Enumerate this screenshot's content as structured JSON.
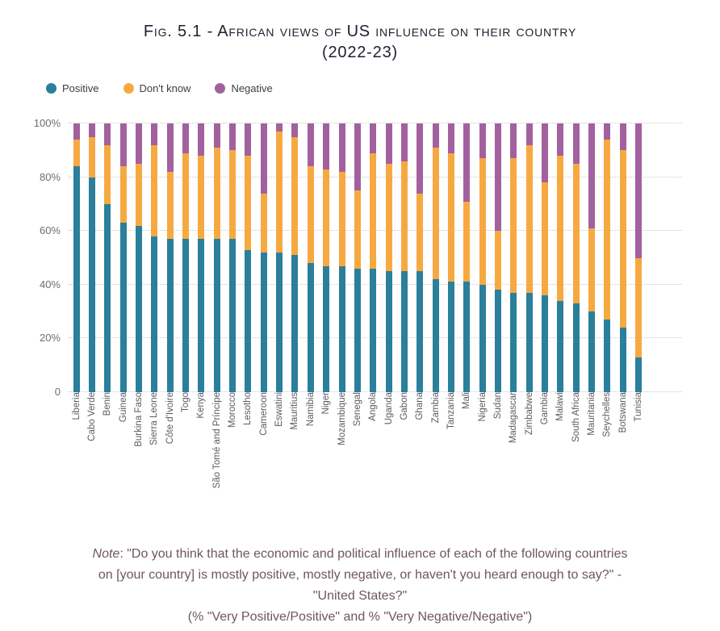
{
  "figure": {
    "title_line1": "Fig. 5.1 - African views of US influence on their country",
    "title_line2": "(2022-23)"
  },
  "legend": {
    "items": [
      {
        "label": "Positive",
        "color": "#2A7F9B"
      },
      {
        "label": "Don't know",
        "color": "#F7A941"
      },
      {
        "label": "Negative",
        "color": "#A2619E"
      }
    ]
  },
  "note": {
    "label": "Note",
    "body": ": \"Do you think that the economic and political influence of each of the following countries on [your country] is mostly positive, mostly negative, or haven't you heard enough to say?\" - \"United States?\"",
    "line2": "(% \"Very Positive/Positive\" and % \"Very Negative/Negative\")"
  },
  "chart_data": {
    "type": "bar",
    "stacked": true,
    "orientation": "vertical",
    "title": "Fig. 5.1 - African views of US influence on their country (2022-23)",
    "xlabel": "",
    "ylabel": "",
    "ylim": [
      0,
      100
    ],
    "grid": true,
    "legend_position": "top-left",
    "yticks": [
      {
        "label": "0",
        "value": 0
      },
      {
        "label": "20%",
        "value": 20
      },
      {
        "label": "40%",
        "value": 40
      },
      {
        "label": "60%",
        "value": 60
      },
      {
        "label": "80%",
        "value": 80
      },
      {
        "label": "100%",
        "value": 100
      }
    ],
    "categories": [
      "Liberia",
      "Cabo Verde",
      "Benin",
      "Guinea",
      "Burkina Faso",
      "Sierra Leone",
      "Côte d'Ivoire",
      "Togo",
      "Kenya",
      "São Tomé and Príncipe",
      "Morocco",
      "Lesotho",
      "Cameroon",
      "Eswatini",
      "Mauritius",
      "Namibia",
      "Niger",
      "Mozambique",
      "Senegal",
      "Angola",
      "Uganda",
      "Gabon",
      "Ghana",
      "Zambia",
      "Tanzania",
      "Mali",
      "Nigeria",
      "Sudan",
      "Madagascar",
      "Zimbabwe",
      "Gambia",
      "Malawi",
      "South Africa",
      "Mauritania",
      "Seychelles",
      "Botswana",
      "Tunisia"
    ],
    "series": [
      {
        "name": "Positive",
        "color": "#2A7F9B",
        "values": [
          84,
          80,
          70,
          63,
          62,
          58,
          57,
          57,
          57,
          57,
          57,
          53,
          52,
          52,
          51,
          48,
          47,
          47,
          46,
          46,
          45,
          45,
          45,
          42,
          41,
          41,
          40,
          38,
          37,
          37,
          36,
          34,
          33,
          30,
          27,
          24,
          13
        ]
      },
      {
        "name": "Don't know",
        "color": "#F7A941",
        "values": [
          10,
          15,
          22,
          21,
          23,
          34,
          25,
          32,
          31,
          34,
          33,
          35,
          22,
          45,
          44,
          36,
          36,
          35,
          29,
          43,
          40,
          41,
          29,
          49,
          48,
          30,
          47,
          22,
          50,
          55,
          42,
          54,
          52,
          31,
          67,
          66,
          37
        ]
      },
      {
        "name": "Negative",
        "color": "#A2619E",
        "values": [
          6,
          5,
          8,
          16,
          15,
          8,
          18,
          11,
          12,
          9,
          10,
          12,
          26,
          3,
          5,
          16,
          17,
          18,
          25,
          11,
          15,
          14,
          26,
          9,
          11,
          29,
          13,
          40,
          13,
          8,
          22,
          12,
          15,
          39,
          6,
          10,
          50
        ]
      }
    ]
  }
}
